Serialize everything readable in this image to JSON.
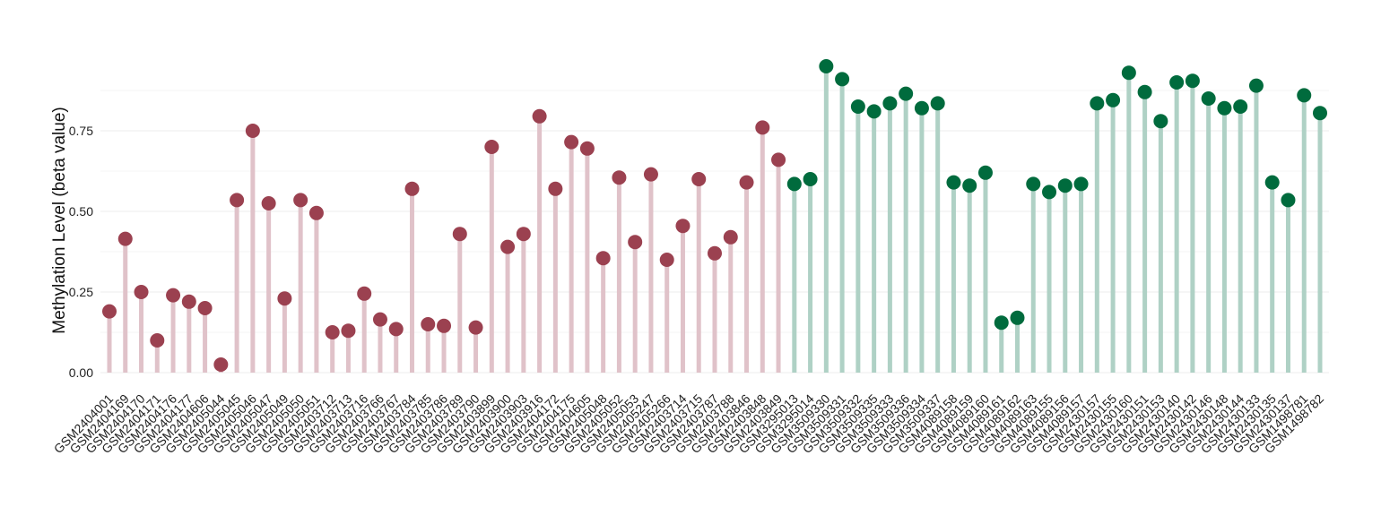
{
  "chart_data": {
    "type": "lollipop",
    "ylabel": "Methylation Level (beta value)",
    "xlabel": "",
    "ylim": [
      0,
      0.95
    ],
    "yticks": [
      0.0,
      0.25,
      0.5,
      0.75
    ],
    "ytick_labels": [
      "0.00",
      "0.25",
      "0.50",
      "0.75"
    ],
    "grid": true,
    "legend": "none",
    "group_colors": {
      "group1": {
        "stem": "#e0c2c9",
        "point": "#9b4150"
      },
      "group2": {
        "stem": "#afd1c5",
        "point": "#006b3d"
      }
    },
    "samples": [
      {
        "label": "GSM2404001",
        "value": 0.19,
        "group": "group1"
      },
      {
        "label": "GSM2404169",
        "value": 0.415,
        "group": "group1"
      },
      {
        "label": "GSM2404170",
        "value": 0.25,
        "group": "group1"
      },
      {
        "label": "GSM2404171",
        "value": 0.1,
        "group": "group1"
      },
      {
        "label": "GSM2404176",
        "value": 0.24,
        "group": "group1"
      },
      {
        "label": "GSM2404177",
        "value": 0.22,
        "group": "group1"
      },
      {
        "label": "GSM2404606",
        "value": 0.2,
        "group": "group1"
      },
      {
        "label": "GSM2405044",
        "value": 0.025,
        "group": "group1"
      },
      {
        "label": "GSM2405045",
        "value": 0.535,
        "group": "group1"
      },
      {
        "label": "GSM2405046",
        "value": 0.75,
        "group": "group1"
      },
      {
        "label": "GSM2405047",
        "value": 0.525,
        "group": "group1"
      },
      {
        "label": "GSM2405049",
        "value": 0.23,
        "group": "group1"
      },
      {
        "label": "GSM2405050",
        "value": 0.535,
        "group": "group1"
      },
      {
        "label": "GSM2405051",
        "value": 0.495,
        "group": "group1"
      },
      {
        "label": "GSM2403712",
        "value": 0.125,
        "group": "group1"
      },
      {
        "label": "GSM2403713",
        "value": 0.13,
        "group": "group1"
      },
      {
        "label": "GSM2403716",
        "value": 0.245,
        "group": "group1"
      },
      {
        "label": "GSM2403766",
        "value": 0.165,
        "group": "group1"
      },
      {
        "label": "GSM2403767",
        "value": 0.135,
        "group": "group1"
      },
      {
        "label": "GSM2403784",
        "value": 0.57,
        "group": "group1"
      },
      {
        "label": "GSM2403785",
        "value": 0.15,
        "group": "group1"
      },
      {
        "label": "GSM2403786",
        "value": 0.145,
        "group": "group1"
      },
      {
        "label": "GSM2403789",
        "value": 0.43,
        "group": "group1"
      },
      {
        "label": "GSM2403790",
        "value": 0.14,
        "group": "group1"
      },
      {
        "label": "GSM2403899",
        "value": 0.7,
        "group": "group1"
      },
      {
        "label": "GSM2403900",
        "value": 0.39,
        "group": "group1"
      },
      {
        "label": "GSM2403903",
        "value": 0.43,
        "group": "group1"
      },
      {
        "label": "GSM2403916",
        "value": 0.795,
        "group": "group1"
      },
      {
        "label": "GSM2404172",
        "value": 0.57,
        "group": "group1"
      },
      {
        "label": "GSM2404175",
        "value": 0.715,
        "group": "group1"
      },
      {
        "label": "GSM2404605",
        "value": 0.695,
        "group": "group1"
      },
      {
        "label": "GSM2405048",
        "value": 0.355,
        "group": "group1"
      },
      {
        "label": "GSM2405052",
        "value": 0.605,
        "group": "group1"
      },
      {
        "label": "GSM2405053",
        "value": 0.405,
        "group": "group1"
      },
      {
        "label": "GSM2405247",
        "value": 0.615,
        "group": "group1"
      },
      {
        "label": "GSM2405266",
        "value": 0.35,
        "group": "group1"
      },
      {
        "label": "GSM2403714",
        "value": 0.455,
        "group": "group1"
      },
      {
        "label": "GSM2403715",
        "value": 0.6,
        "group": "group1"
      },
      {
        "label": "GSM2403787",
        "value": 0.37,
        "group": "group1"
      },
      {
        "label": "GSM2403788",
        "value": 0.42,
        "group": "group1"
      },
      {
        "label": "GSM2403846",
        "value": 0.59,
        "group": "group1"
      },
      {
        "label": "GSM2403848",
        "value": 0.76,
        "group": "group1"
      },
      {
        "label": "GSM2403849",
        "value": 0.66,
        "group": "group1"
      },
      {
        "label": "GSM3295013",
        "value": 0.585,
        "group": "group2"
      },
      {
        "label": "GSM3295014",
        "value": 0.6,
        "group": "group2"
      },
      {
        "label": "GSM3509330",
        "value": 0.95,
        "group": "group2"
      },
      {
        "label": "GSM3509331",
        "value": 0.91,
        "group": "group2"
      },
      {
        "label": "GSM3509332",
        "value": 0.825,
        "group": "group2"
      },
      {
        "label": "GSM3509335",
        "value": 0.81,
        "group": "group2"
      },
      {
        "label": "GSM3509333",
        "value": 0.835,
        "group": "group2"
      },
      {
        "label": "GSM3509336",
        "value": 0.865,
        "group": "group2"
      },
      {
        "label": "GSM3509334",
        "value": 0.82,
        "group": "group2"
      },
      {
        "label": "GSM3509337",
        "value": 0.835,
        "group": "group2"
      },
      {
        "label": "GSM4089158",
        "value": 0.59,
        "group": "group2"
      },
      {
        "label": "GSM4089159",
        "value": 0.58,
        "group": "group2"
      },
      {
        "label": "GSM4089160",
        "value": 0.62,
        "group": "group2"
      },
      {
        "label": "GSM4089161",
        "value": 0.155,
        "group": "group2"
      },
      {
        "label": "GSM4089162",
        "value": 0.17,
        "group": "group2"
      },
      {
        "label": "GSM4089163",
        "value": 0.585,
        "group": "group2"
      },
      {
        "label": "GSM4089155",
        "value": 0.56,
        "group": "group2"
      },
      {
        "label": "GSM4089156",
        "value": 0.58,
        "group": "group2"
      },
      {
        "label": "GSM4089157",
        "value": 0.585,
        "group": "group2"
      },
      {
        "label": "GSM2430157",
        "value": 0.835,
        "group": "group2"
      },
      {
        "label": "GSM2430155",
        "value": 0.845,
        "group": "group2"
      },
      {
        "label": "GSM2430160",
        "value": 0.93,
        "group": "group2"
      },
      {
        "label": "GSM2430151",
        "value": 0.87,
        "group": "group2"
      },
      {
        "label": "GSM2430153",
        "value": 0.78,
        "group": "group2"
      },
      {
        "label": "GSM2430140",
        "value": 0.9,
        "group": "group2"
      },
      {
        "label": "GSM2430142",
        "value": 0.905,
        "group": "group2"
      },
      {
        "label": "GSM2430146",
        "value": 0.85,
        "group": "group2"
      },
      {
        "label": "GSM2430148",
        "value": 0.82,
        "group": "group2"
      },
      {
        "label": "GSM2430144",
        "value": 0.825,
        "group": "group2"
      },
      {
        "label": "GSM2430133",
        "value": 0.89,
        "group": "group2"
      },
      {
        "label": "GSM2430135",
        "value": 0.59,
        "group": "group2"
      },
      {
        "label": "GSM2430137",
        "value": 0.535,
        "group": "group2"
      },
      {
        "label": "GSM1498781",
        "value": 0.86,
        "group": "group2"
      },
      {
        "label": "GSM1498782",
        "value": 0.805,
        "group": "group2"
      }
    ]
  }
}
